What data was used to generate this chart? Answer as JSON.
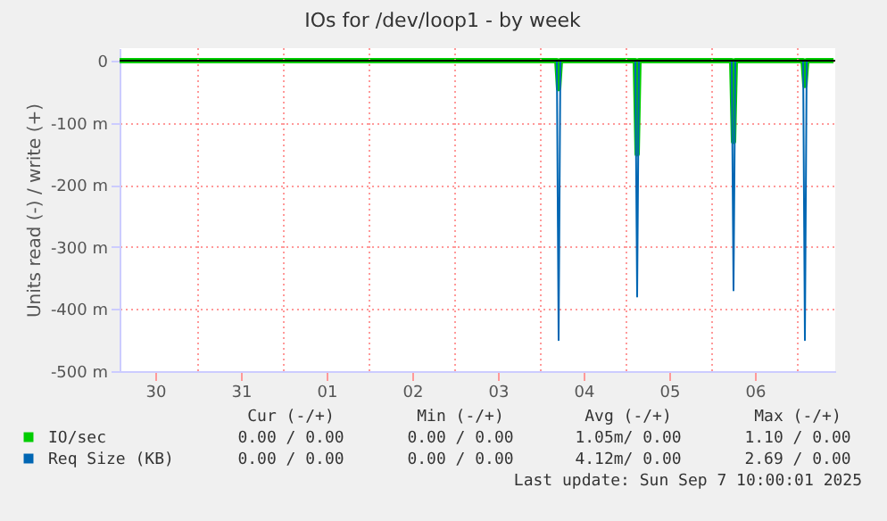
{
  "chart_data": {
    "type": "line",
    "title": "IOs for /dev/loop1 - by week",
    "ylabel": "Units read (-) / write (+)",
    "x": [
      "2025-08-30T02:00",
      "2025-09-04T04:30",
      "2025-09-04T05:00",
      "2025-09-04T05:30",
      "2025-09-05T02:30",
      "2025-09-05T03:00",
      "2025-09-05T03:30",
      "2025-09-06T05:30",
      "2025-09-06T06:00",
      "2025-09-06T06:30",
      "2025-09-07T01:30",
      "2025-09-07T02:00",
      "2025-09-07T02:30",
      "2025-09-07T10:00"
    ],
    "series": [
      {
        "name": "IO/sec",
        "color": "#00cc00",
        "values": [
          0,
          0,
          -45,
          0,
          0,
          -150,
          0,
          0,
          -130,
          0,
          0,
          -40,
          0,
          0
        ]
      },
      {
        "name": "Req Size (KB)",
        "color": "#0066b3",
        "values": [
          0,
          0,
          -450,
          0,
          0,
          -380,
          0,
          0,
          -370,
          0,
          0,
          -450,
          0,
          0
        ]
      }
    ],
    "xlim": [
      "2025-08-30T02:00",
      "2025-09-07T10:30"
    ],
    "xticks": [
      {
        "value": "2025-08-30T12:00",
        "label": "30"
      },
      {
        "value": "2025-08-31T00:00",
        "label": null
      },
      {
        "value": "2025-08-31T12:00",
        "label": "31"
      },
      {
        "value": "2025-09-01T00:00",
        "label": null
      },
      {
        "value": "2025-09-01T12:00",
        "label": "01"
      },
      {
        "value": "2025-09-02T00:00",
        "label": null
      },
      {
        "value": "2025-09-02T12:00",
        "label": "02"
      },
      {
        "value": "2025-09-03T00:00",
        "label": null
      },
      {
        "value": "2025-09-03T12:00",
        "label": "03"
      },
      {
        "value": "2025-09-04T00:00",
        "label": null
      },
      {
        "value": "2025-09-04T12:00",
        "label": "04"
      },
      {
        "value": "2025-09-05T00:00",
        "label": null
      },
      {
        "value": "2025-09-05T12:00",
        "label": "05"
      },
      {
        "value": "2025-09-06T00:00",
        "label": null
      },
      {
        "value": "2025-09-06T12:00",
        "label": "06"
      },
      {
        "value": "2025-09-07T00:00",
        "label": null
      }
    ],
    "ylim": [
      -500,
      20
    ],
    "yticks": [
      0,
      {
        "value": -100,
        "label": "-100 m"
      },
      {
        "value": -200,
        "label": "-200 m"
      },
      {
        "value": -300,
        "label": "-300 m"
      },
      {
        "value": -400,
        "label": "-400 m"
      },
      {
        "value": -500,
        "label": "-500 m"
      }
    ],
    "ref_lines": [
      {
        "axis": "y",
        "value": 0,
        "color": "#000000"
      }
    ],
    "grid": true,
    "legend": "bottom",
    "annotations": [
      "Cur (-/+)",
      "Min (-/+)",
      "Avg (-/+)",
      "Max (-/+)",
      "0.00 / 0.00",
      "0.00 / 0.00",
      "1.05m/ 0.00",
      "1.10 / 0.00",
      "0.00 / 0.00",
      "0.00 / 0.00",
      "4.12m/ 0.00",
      "2.69 / 0.00",
      "Last update: Sun Sep  7 10:00:01 2025"
    ]
  }
}
